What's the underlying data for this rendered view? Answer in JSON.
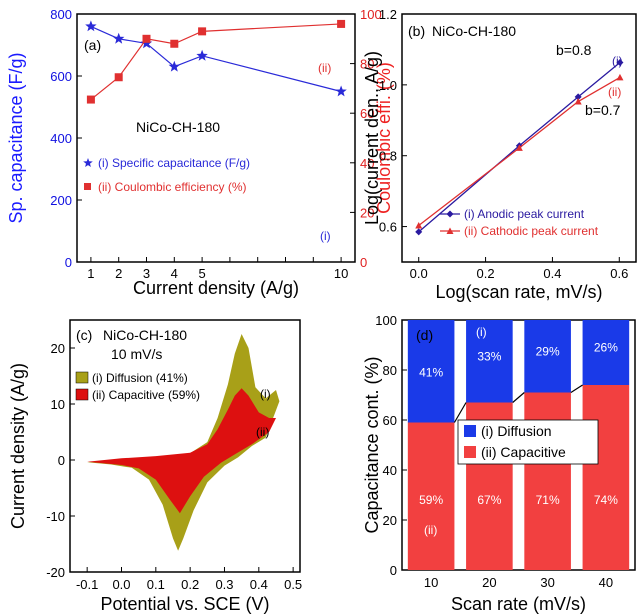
{
  "chart_data": [
    {
      "panel": "(a)",
      "type": "line",
      "annotation": "NiCo-CH-180",
      "xlabel": "Current density (A/g)",
      "ylabel": "Sp. capacitance (F/g)",
      "ylabel_right": "Coulombic effi. (%)",
      "xticks": [
        "1",
        "2",
        "3",
        "4",
        "5",
        "",
        "",
        "",
        "",
        "10"
      ],
      "yticks": [
        "0",
        "200",
        "400",
        "600",
        "800"
      ],
      "yticks_right": [
        "0",
        "20",
        "40",
        "60",
        "80",
        "100"
      ],
      "xlim": [
        0.5,
        10.5
      ],
      "ylim": [
        0,
        800
      ],
      "ylim_right": [
        0,
        100
      ],
      "legend_position": "lower-left",
      "series": [
        {
          "name": "(i) Specific capacitance (F/g)",
          "label": "(i)",
          "axis": "left",
          "color": "#2a2ad8",
          "marker": "star",
          "x": [
            1,
            2,
            3,
            4,
            5,
            10
          ],
          "y": [
            760,
            720,
            705,
            630,
            665,
            550
          ]
        },
        {
          "name": "(ii) Coulombic efficiency (%)",
          "label": "(ii)",
          "axis": "right",
          "color": "#e03030",
          "marker": "square",
          "x": [
            1,
            2,
            3,
            4,
            5,
            10
          ],
          "y": [
            65.5,
            74.5,
            90,
            88,
            93,
            96
          ]
        }
      ]
    },
    {
      "panel": "(b)",
      "type": "line",
      "annotation": "NiCo-CH-180",
      "xlabel": "Log(scan rate, mV/s)",
      "ylabel": "Log(current den., A/g)",
      "xticks": [
        "0.0",
        "0.2",
        "0.4",
        "0.6"
      ],
      "yticks": [
        "0.6",
        "0.8",
        "1.0",
        "1.2"
      ],
      "xlim": [
        -0.05,
        0.65
      ],
      "ylim": [
        0.5,
        1.2
      ],
      "legend_position": "lower-right",
      "series": [
        {
          "name": "(i) Anodic peak current",
          "label": "(i)",
          "slope_label": "b=0.8",
          "color": "#2a1aa0",
          "marker": "diamond",
          "x": [
            0,
            0.301,
            0.477,
            0.602
          ],
          "y": [
            0.585,
            0.828,
            0.966,
            1.063
          ]
        },
        {
          "name": "(ii) Cathodic peak current",
          "label": "(ii)",
          "slope_label": "b=0.7",
          "color": "#e03030",
          "marker": "triangle",
          "x": [
            0,
            0.301,
            0.477,
            0.602
          ],
          "y": [
            0.603,
            0.822,
            0.953,
            1.021
          ]
        }
      ]
    },
    {
      "panel": "(c)",
      "type": "area",
      "annotation": "NiCo-CH-180",
      "annotation2": "10 mV/s",
      "xlabel": "Potential vs. SCE (V)",
      "ylabel": "Current density (A/g)",
      "xticks": [
        "-0.1",
        "0.0",
        "0.1",
        "0.2",
        "0.3",
        "0.4",
        "0.5"
      ],
      "yticks": [
        "-20",
        "-10",
        "0",
        "10",
        "20"
      ],
      "xlim": [
        -0.15,
        0.52
      ],
      "ylim": [
        -20,
        25
      ],
      "legend_position": "upper-left",
      "series": [
        {
          "name": "(i) Diffusion (41%)",
          "label": "(i)",
          "color": "#a8a018",
          "outline": [
            [
              -0.1,
              -0.4
            ],
            [
              0.0,
              0.2
            ],
            [
              0.1,
              0.6
            ],
            [
              0.2,
              1.2
            ],
            [
              0.25,
              3.2
            ],
            [
              0.28,
              7.5
            ],
            [
              0.31,
              13.5
            ],
            [
              0.33,
              19.0
            ],
            [
              0.35,
              22.5
            ],
            [
              0.37,
              20.0
            ],
            [
              0.39,
              13.0
            ],
            [
              0.42,
              11.0
            ],
            [
              0.45,
              12.5
            ],
            [
              0.46,
              10.5
            ],
            [
              0.42,
              4.0
            ],
            [
              0.38,
              2.5
            ],
            [
              0.34,
              0.5
            ],
            [
              0.3,
              -1.0
            ],
            [
              0.25,
              -4.0
            ],
            [
              0.21,
              -9.0
            ],
            [
              0.18,
              -14.0
            ],
            [
              0.165,
              -16.2
            ],
            [
              0.15,
              -14.0
            ],
            [
              0.12,
              -8.0
            ],
            [
              0.08,
              -3.5
            ],
            [
              0.03,
              -1.4
            ],
            [
              -0.03,
              -0.8
            ],
            [
              -0.1,
              -0.4
            ]
          ]
        },
        {
          "name": "(ii) Capacitive (59%)",
          "label": "(ii)",
          "color": "#dd1010",
          "outline": [
            [
              -0.1,
              -0.3
            ],
            [
              0.0,
              0.3
            ],
            [
              0.1,
              0.7
            ],
            [
              0.2,
              1.3
            ],
            [
              0.25,
              2.8
            ],
            [
              0.28,
              5.5
            ],
            [
              0.31,
              9.0
            ],
            [
              0.33,
              11.5
            ],
            [
              0.35,
              12.8
            ],
            [
              0.37,
              11.5
            ],
            [
              0.4,
              8.5
            ],
            [
              0.43,
              7.5
            ],
            [
              0.45,
              7.5
            ],
            [
              0.43,
              5.0
            ],
            [
              0.38,
              2.8
            ],
            [
              0.33,
              1.0
            ],
            [
              0.29,
              -0.5
            ],
            [
              0.24,
              -3.0
            ],
            [
              0.2,
              -6.5
            ],
            [
              0.17,
              -9.5
            ],
            [
              0.14,
              -7.0
            ],
            [
              0.1,
              -3.5
            ],
            [
              0.05,
              -1.5
            ],
            [
              0.0,
              -0.9
            ],
            [
              -0.1,
              -0.3
            ]
          ]
        }
      ]
    },
    {
      "panel": "(d)",
      "type": "bar",
      "stacked": true,
      "xlabel": "Scan rate (mV/s)",
      "ylabel": "Capacitance cont. (%)",
      "categories": [
        "10",
        "20",
        "30",
        "40"
      ],
      "yticks": [
        "0",
        "20",
        "40",
        "60",
        "80",
        "100"
      ],
      "ylim": [
        0,
        100
      ],
      "legend_position": "center",
      "series": [
        {
          "name": "(ii) Capacitive",
          "label": "(ii)",
          "color": "#f24040",
          "values": [
            59,
            67,
            71,
            74
          ],
          "value_labels": [
            "59%",
            "67%",
            "71%",
            "74%"
          ]
        },
        {
          "name": "(i) Diffusion",
          "label": "(i)",
          "color": "#1a3ae8",
          "values": [
            41,
            33,
            29,
            26
          ],
          "value_labels": [
            "41%",
            "33%",
            "29%",
            "26%"
          ]
        }
      ]
    }
  ]
}
